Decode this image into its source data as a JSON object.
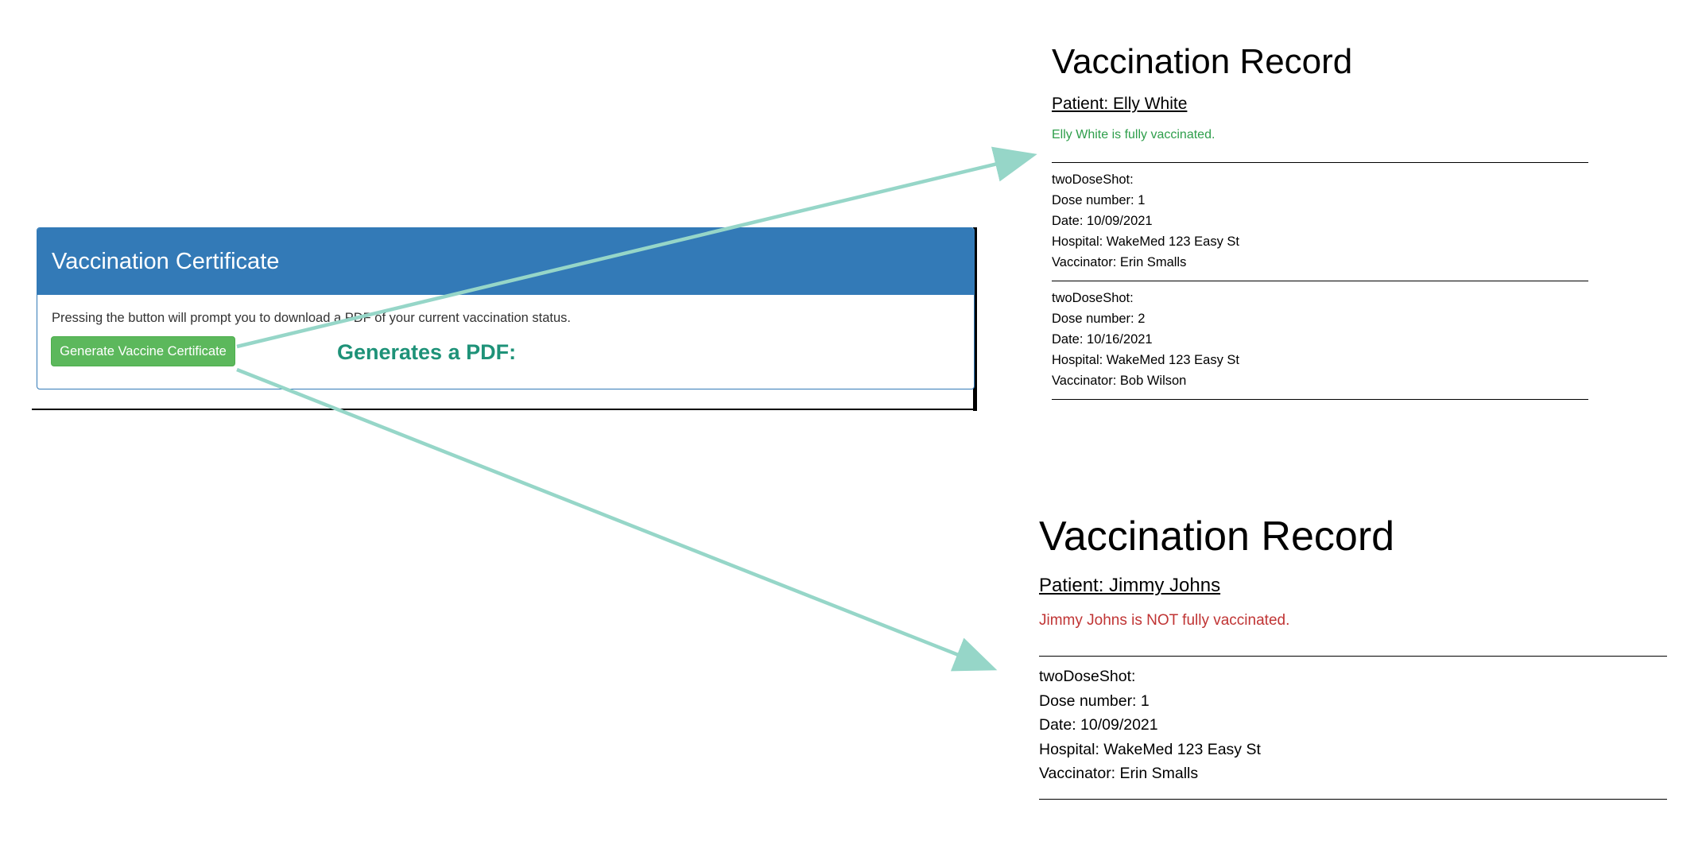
{
  "panel": {
    "heading": "Vaccination Certificate",
    "description": "Pressing the button will prompt you to download a PDF of your current vaccination status.",
    "button_label": "Generate Vaccine Certificate",
    "button_color": "#5cb85c",
    "heading_color": "#337ab7"
  },
  "callout": {
    "text": "Generates a PDF:",
    "color": "#1e9278",
    "arrow_color": "#96d6c8"
  },
  "records": [
    {
      "title": "Vaccination Record",
      "patient": "Patient: Elly White",
      "status": "Elly White is fully vaccinated.",
      "status_color": "#2e9e4b",
      "doses": [
        {
          "type": "twoDoseShot:",
          "dose_number": "Dose number: 1",
          "date": "Date: 10/09/2021",
          "hospital": "Hospital: WakeMed  123 Easy St",
          "vaccinator": "Vaccinator: Erin Smalls"
        },
        {
          "type": "twoDoseShot:",
          "dose_number": "Dose number: 2",
          "date": "Date: 10/16/2021",
          "hospital": "Hospital: WakeMed  123 Easy St",
          "vaccinator": "Vaccinator: Bob Wilson"
        }
      ]
    },
    {
      "title": "Vaccination Record",
      "patient": "Patient: Jimmy Johns",
      "status": "Jimmy Johns is NOT fully vaccinated.",
      "status_color": "#c03434",
      "doses": [
        {
          "type": "twoDoseShot:",
          "dose_number": "Dose number: 1",
          "date": "Date: 10/09/2021",
          "hospital": "Hospital: WakeMed  123 Easy St",
          "vaccinator": "Vaccinator: Erin Smalls"
        }
      ]
    }
  ]
}
